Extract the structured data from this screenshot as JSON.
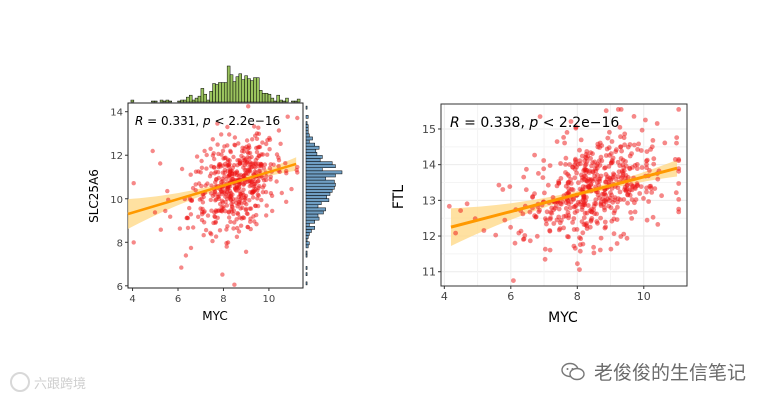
{
  "colors": {
    "point": "#ee1111",
    "line": "#ff9900",
    "band": "#ffd98a",
    "hist_top": "#9bc45e",
    "hist_right": "#6f9ec3",
    "axis": "#222222",
    "grid": "#ebebeb"
  },
  "chart_data": [
    {
      "type": "scatter",
      "title": "",
      "xlabel": "MYC",
      "ylabel": "SLC25A6",
      "annotation": {
        "R": "0.331",
        "p": "2.2e−16"
      },
      "xlim": [
        3.8,
        11.5
      ],
      "ylim": [
        5.9,
        14.4
      ],
      "xticks": [
        4,
        6,
        8,
        10
      ],
      "yticks": [
        6,
        8,
        10,
        12,
        14
      ],
      "fit": {
        "x0": 3.8,
        "y0": 9.3,
        "x1": 11.2,
        "y1": 11.6
      },
      "center": {
        "x": 8.5,
        "y": 10.7
      },
      "n_points": 520,
      "marginal_top": "histogram of MYC",
      "marginal_right": "histogram of SLC25A6",
      "grid": false
    },
    {
      "type": "scatter",
      "title": "",
      "xlabel": "MYC",
      "ylabel": "FTL",
      "annotation": {
        "R": "0.338",
        "p": "2.2e−16"
      },
      "xlim": [
        3.9,
        11.3
      ],
      "ylim": [
        10.6,
        15.7
      ],
      "xticks": [
        4,
        6,
        8,
        10
      ],
      "yticks": [
        11,
        12,
        13,
        14,
        15
      ],
      "fit": {
        "x0": 4.2,
        "y0": 12.25,
        "x1": 11.0,
        "y1": 13.9
      },
      "center": {
        "x": 8.5,
        "y": 13.3
      },
      "n_points": 520,
      "grid": true
    }
  ],
  "watermarks": {
    "left": "六跟跨境",
    "right": "老俊俊的生信笔记"
  }
}
